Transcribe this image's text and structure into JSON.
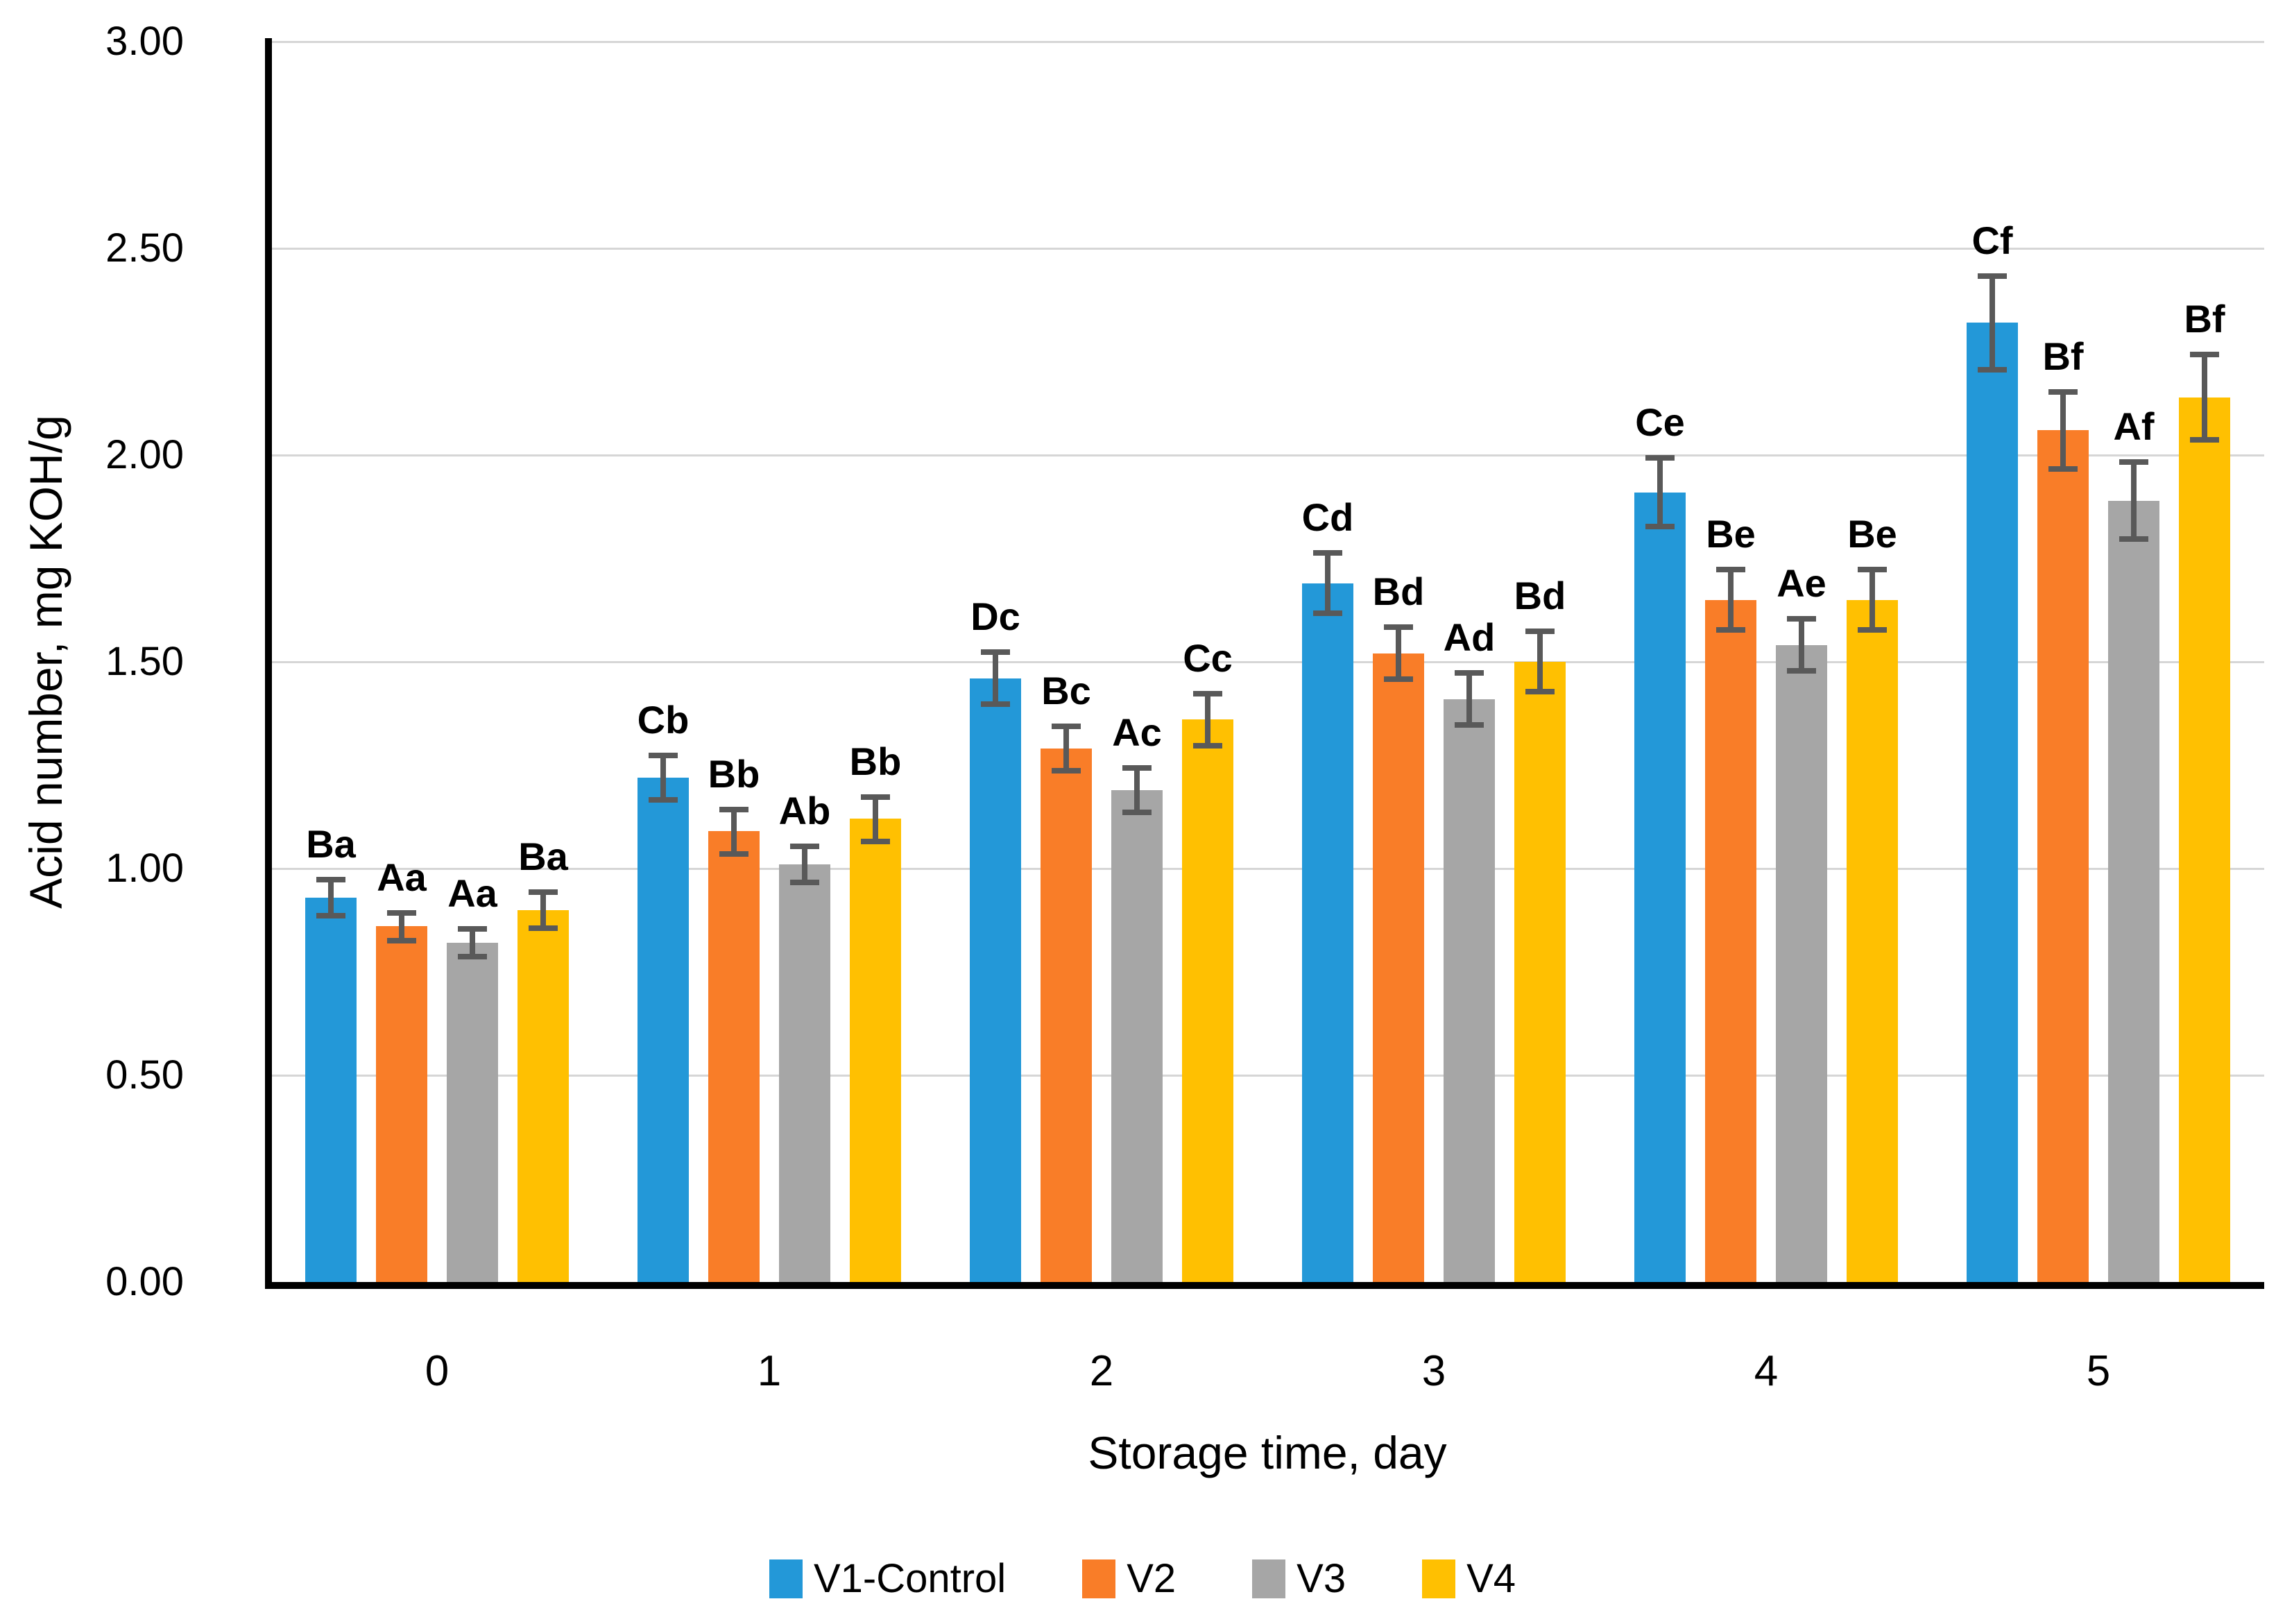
{
  "chart_data": {
    "type": "bar",
    "title": "",
    "xlabel": "Storage time, day",
    "ylabel": "Acid number, mg KOH/g",
    "categories": [
      "0",
      "1",
      "2",
      "3",
      "4",
      "5"
    ],
    "ylim": [
      0,
      3
    ],
    "ytick_labels": [
      "3.00",
      "2.50",
      "2.00",
      "1.50",
      "1.00",
      "0.50",
      "0.00"
    ],
    "ytick_values": [
      3.0,
      2.5,
      2.0,
      1.5,
      1.0,
      0.5,
      0.0
    ],
    "grid": true,
    "legend_position": "bottom",
    "colors": {
      "error_bar": "#595959",
      "gridline": "#d6d6d6",
      "axis": "#000000"
    },
    "series": [
      {
        "name": "V1-Control",
        "color": "#2398d8",
        "values": [
          0.93,
          1.22,
          1.46,
          1.69,
          1.91,
          2.32
        ],
        "errors": [
          0.05,
          0.06,
          0.07,
          0.08,
          0.09,
          0.12
        ],
        "labels": [
          "Ba",
          "Cb",
          "Dc",
          "Cd",
          "Ce",
          "Cf"
        ]
      },
      {
        "name": "V2",
        "color": "#f97d28",
        "values": [
          0.86,
          1.09,
          1.29,
          1.52,
          1.65,
          2.06
        ],
        "errors": [
          0.04,
          0.06,
          0.06,
          0.07,
          0.08,
          0.1
        ],
        "labels": [
          "Aa",
          "Bb",
          "Bc",
          "Bd",
          "Be",
          "Bf"
        ]
      },
      {
        "name": "V3",
        "color": "#a6a6a6",
        "values": [
          0.82,
          1.01,
          1.19,
          1.41,
          1.54,
          1.89
        ],
        "errors": [
          0.04,
          0.05,
          0.06,
          0.07,
          0.07,
          0.1
        ],
        "labels": [
          "Aa",
          "Ab",
          "Ac",
          "Ad",
          "Ae",
          "Af"
        ]
      },
      {
        "name": "V4",
        "color": "#ffc001",
        "values": [
          0.9,
          1.12,
          1.36,
          1.5,
          1.65,
          2.14
        ],
        "errors": [
          0.05,
          0.06,
          0.07,
          0.08,
          0.08,
          0.11
        ],
        "labels": [
          "Ba",
          "Bb",
          "Cc",
          "Bd",
          "Be",
          "Bf"
        ]
      }
    ]
  }
}
